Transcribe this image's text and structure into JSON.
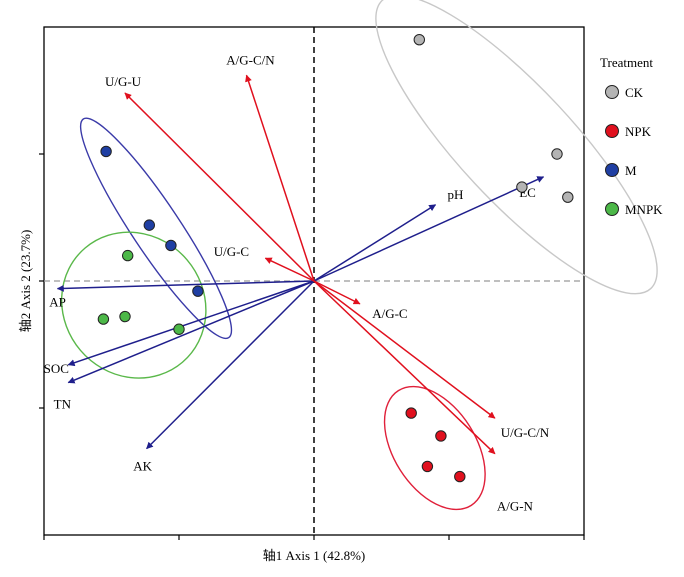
{
  "chart_data": {
    "type": "scatter",
    "subtype": "RDA biplot",
    "xlabel": "轴1 Axis 1 (42.8%)",
    "ylabel": "轴2 Axis 2 (23.7%)",
    "xlim": [
      -1.0,
      1.0
    ],
    "ylim": [
      -1.0,
      1.0
    ],
    "legend": {
      "title": "Treatment",
      "placement": "right"
    },
    "groups": [
      {
        "name": "CK",
        "color": "#b4b4b4",
        "ellipse_color": "#c8c8c8",
        "points": [
          [
            0.39,
            0.95
          ],
          [
            0.9,
            0.5
          ],
          [
            0.77,
            0.37
          ],
          [
            0.94,
            0.33
          ]
        ]
      },
      {
        "name": "NPK",
        "color": "#e0101e",
        "ellipse_color": "#e0203a",
        "points": [
          [
            0.36,
            -0.52
          ],
          [
            0.47,
            -0.61
          ],
          [
            0.42,
            -0.73
          ],
          [
            0.54,
            -0.77
          ]
        ]
      },
      {
        "name": "M",
        "color": "#1f3fa3",
        "ellipse_color": "#3a3aa8",
        "points": [
          [
            -0.77,
            0.51
          ],
          [
            -0.61,
            0.22
          ],
          [
            -0.53,
            0.14
          ],
          [
            -0.43,
            -0.04
          ]
        ]
      },
      {
        "name": "MNPK",
        "color": "#4cb848",
        "ellipse_color": "#5ab84a",
        "points": [
          [
            -0.69,
            0.1
          ],
          [
            -0.78,
            -0.15
          ],
          [
            -0.7,
            -0.14
          ],
          [
            -0.5,
            -0.19
          ]
        ]
      }
    ],
    "env_vectors": {
      "color": "#1f1f8c",
      "items": [
        {
          "label": "pH",
          "x": 0.45,
          "y": 0.3
        },
        {
          "label": "EC",
          "x": 0.85,
          "y": 0.41
        },
        {
          "label": "AP",
          "x": -0.95,
          "y": -0.03
        },
        {
          "label": "SOC",
          "x": -0.91,
          "y": -0.33
        },
        {
          "label": "TN",
          "x": -0.91,
          "y": -0.4
        },
        {
          "label": "AK",
          "x": -0.62,
          "y": -0.66
        }
      ]
    },
    "enzyme_vectors": {
      "color": "#e0101e",
      "items": [
        {
          "label": "A/G-C/N",
          "x": -0.25,
          "y": 0.81
        },
        {
          "label": "U/G-U",
          "x": -0.7,
          "y": 0.74
        },
        {
          "label": "U/G-C",
          "x": -0.18,
          "y": 0.09
        },
        {
          "label": "A/G-C",
          "x": 0.17,
          "y": -0.09
        },
        {
          "label": "U/G-C/N",
          "x": 0.67,
          "y": -0.54
        },
        {
          "label": "A/G-N",
          "x": 0.67,
          "y": -0.68
        }
      ]
    }
  }
}
